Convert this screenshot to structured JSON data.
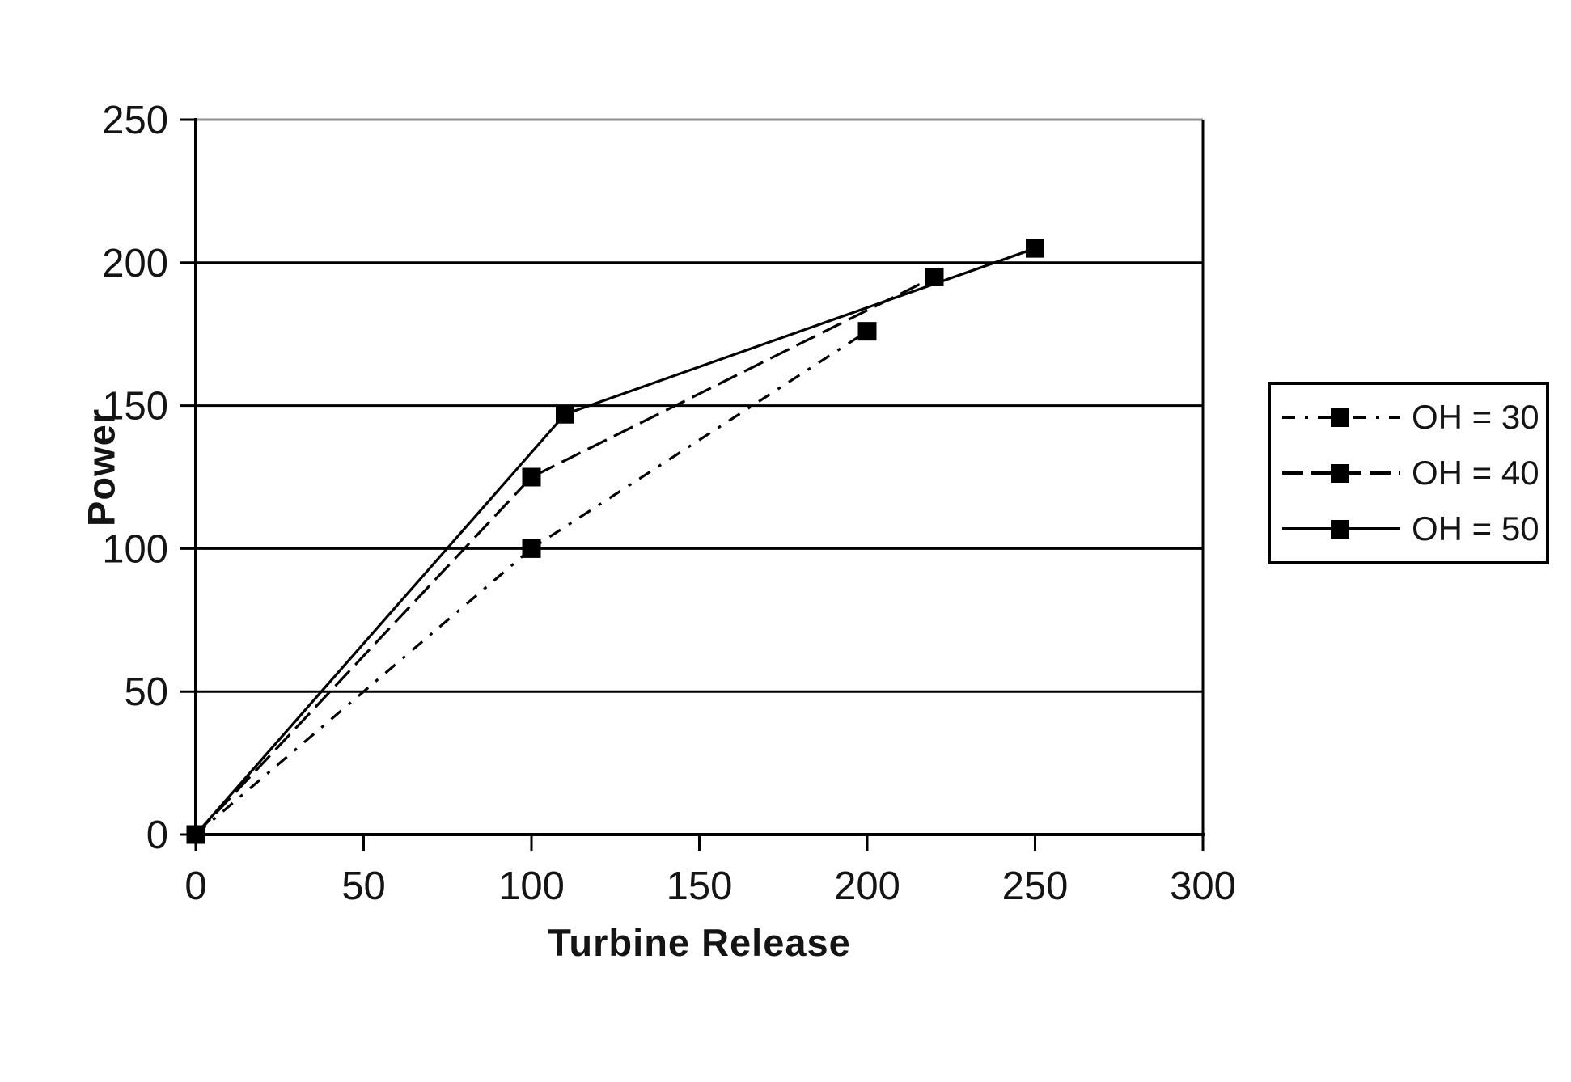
{
  "chart_data": {
    "type": "line",
    "title": "",
    "xlabel": "Turbine Release",
    "ylabel": "Power",
    "xlim": [
      0,
      300
    ],
    "ylim": [
      0,
      250
    ],
    "xticks": [
      0,
      50,
      100,
      150,
      200,
      250,
      300
    ],
    "yticks": [
      0,
      50,
      100,
      150,
      200,
      250
    ],
    "grid": "horizontal",
    "legend_position": "right-outside",
    "marker": "filled-square",
    "line_color": "#000000",
    "grid_color": "#000000",
    "top_border_color": "#8f8f8f",
    "series": [
      {
        "name": "OH = 30",
        "style": "dash-dot",
        "dash": "16 12 4 12",
        "points": [
          [
            0,
            0
          ],
          [
            100,
            100
          ],
          [
            200,
            176
          ]
        ]
      },
      {
        "name": "OH = 40",
        "style": "long-dash",
        "dash": "26 10",
        "points": [
          [
            0,
            0
          ],
          [
            100,
            125
          ],
          [
            220,
            195
          ]
        ]
      },
      {
        "name": "OH = 50",
        "style": "solid",
        "dash": "",
        "points": [
          [
            0,
            0
          ],
          [
            110,
            147
          ],
          [
            250,
            205
          ]
        ]
      }
    ]
  }
}
